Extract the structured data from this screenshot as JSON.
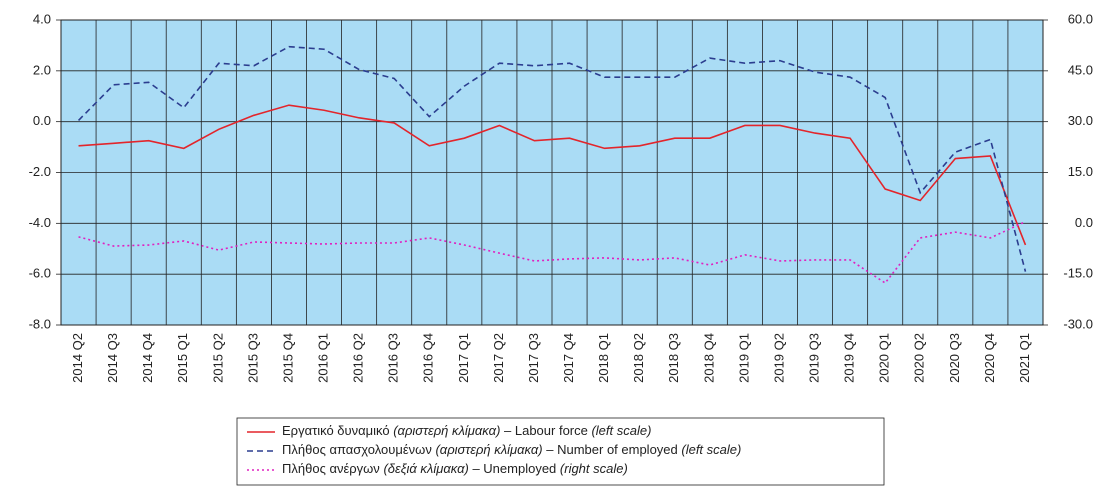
{
  "chart_data": {
    "type": "line",
    "categories": [
      "2014 Q2",
      "2014 Q3",
      "2014 Q4",
      "2015 Q1",
      "2015 Q2",
      "2015 Q3",
      "2015 Q4",
      "2016 Q1",
      "2016 Q2",
      "2016 Q3",
      "2016 Q4",
      "2017 Q1",
      "2017 Q2",
      "2017 Q3",
      "2017 Q4",
      "2018 Q1",
      "2018 Q2",
      "2018 Q3",
      "2018 Q4",
      "2019 Q1",
      "2019 Q2",
      "2019 Q3",
      "2019 Q4",
      "2020 Q1",
      "2020 Q2",
      "2020 Q3",
      "2020 Q4",
      "2021 Q1"
    ],
    "series": [
      {
        "name": "Εργατικό δυναμικό (αριστερή κλίμακα) – Labour force (left scale)",
        "color": "#e3252b",
        "dash": "solid",
        "values": [
          -0.95,
          -0.85,
          -0.75,
          -1.05,
          -0.3,
          0.25,
          0.65,
          0.45,
          0.15,
          -0.05,
          -0.95,
          -0.65,
          -0.15,
          -0.75,
          -0.65,
          -1.05,
          -0.95,
          -0.65,
          -0.65,
          -0.15,
          -0.15,
          -0.45,
          -0.65,
          -2.65,
          -3.1,
          -1.45,
          -1.35,
          -4.85
        ]
      },
      {
        "name": "Πλήθος απασχολουμένων (αριστερή κλίμακα) – Number of employed (left scale)",
        "color": "#2b3d8f",
        "dash": "dashed",
        "values": [
          0.05,
          1.45,
          1.55,
          0.55,
          2.3,
          2.2,
          2.95,
          2.85,
          2.05,
          1.7,
          0.2,
          1.4,
          2.3,
          2.2,
          2.3,
          1.75,
          1.75,
          1.75,
          2.5,
          2.3,
          2.4,
          1.95,
          1.75,
          0.95,
          -2.8,
          -1.2,
          -0.7,
          -5.9
        ]
      },
      {
        "name": "Πλήθος ανέργων (δεξιά κλίμακα) – Unemployed (right scale)",
        "color": "#e020c0",
        "dash": "dotted",
        "axis": "y2",
        "values": [
          -4,
          -6.7,
          -6.4,
          -5.2,
          -7.9,
          -5.5,
          -5.8,
          -6.1,
          -5.8,
          -5.8,
          -4.3,
          -6.4,
          -8.8,
          -11.1,
          -10.5,
          -10.2,
          -10.8,
          -10.2,
          -12.3,
          -9.3,
          -11.1,
          -10.8,
          -10.8,
          -17.6,
          -4.3,
          -2.6,
          -4.3,
          0.5
        ]
      }
    ],
    "ylim": [
      -8,
      4
    ],
    "yticks": [
      {
        "value": -8,
        "label": "-8.0"
      },
      {
        "value": -6,
        "label": "-6.0"
      },
      {
        "value": -4,
        "label": "-4.0"
      },
      {
        "value": -2,
        "label": "-2.0"
      },
      {
        "value": 0,
        "label": "0.0"
      },
      {
        "value": 2,
        "label": "2.0"
      },
      {
        "value": 4,
        "label": "4.0"
      }
    ],
    "y2lim": [
      -30,
      60
    ],
    "y2ticks": [
      {
        "value": -30,
        "label": "-30.0"
      },
      {
        "value": -15,
        "label": "-15.0"
      },
      {
        "value": 0,
        "label": "0.0"
      },
      {
        "value": 15,
        "label": "15.0"
      },
      {
        "value": 30,
        "label": "30.0"
      },
      {
        "value": 45,
        "label": "45.0"
      },
      {
        "value": 60,
        "label": "60.0"
      }
    ],
    "grid": true,
    "background": "#aadcf5",
    "legend": "bottom"
  }
}
